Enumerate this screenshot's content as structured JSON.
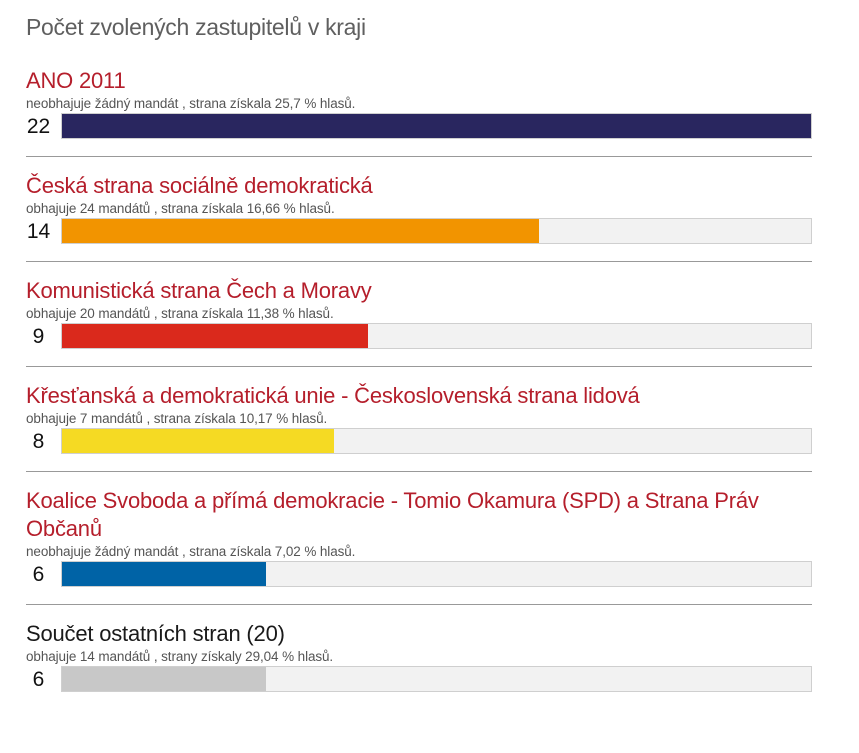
{
  "page": {
    "title": "Počet zvolených zastupitelů v kraji"
  },
  "parties": [
    {
      "name": "ANO 2011",
      "note": "neobhajuje žádný mandát , strana získala 25,7 % hlasů.",
      "seats": "22",
      "color": "#29265f"
    },
    {
      "name": "Česká strana sociálně demokratická",
      "note": "obhajuje 24 mandátů , strana získala 16,66 % hlasů.",
      "seats": "14",
      "color": "#f29400"
    },
    {
      "name": "Komunistická strana Čech a Moravy",
      "note": "obhajuje 20 mandátů , strana získala 11,38 % hlasů.",
      "seats": "9",
      "color": "#da291c"
    },
    {
      "name": "Křesťanská a demokratická unie - Československá strana lidová",
      "note": "obhajuje 7 mandátů , strana získala 10,17 % hlasů.",
      "seats": "8",
      "color": "#f5da23"
    },
    {
      "name": "Koalice Svoboda a přímá demokracie - Tomio Okamura (SPD) a Strana Práv Občanů",
      "note": "neobhajuje žádný mandát , strana získala 7,02 % hlasů.",
      "seats": "6",
      "color": "#0063a6"
    },
    {
      "name": "Součet ostatních stran (20)",
      "note": "obhajuje 14 mandátů , strany získaly 29,04 % hlasů.",
      "seats": "6",
      "color": "#c8c8c8"
    }
  ],
  "chart_data": {
    "type": "bar",
    "orientation": "horizontal",
    "title": "Počet zvolených zastupitelů v kraji",
    "categories": [
      "ANO 2011",
      "Česká strana sociálně demokratická",
      "Komunistická strana Čech a Moravy",
      "Křesťanská a demokratická unie - Československá strana lidová",
      "Koalice Svoboda a přímá demokracie - Tomio Okamura (SPD) a Strana Práv Občanů",
      "Součet ostatních stran (20)"
    ],
    "values": [
      22,
      14,
      9,
      8,
      6,
      6
    ],
    "vote_share_pct": [
      25.7,
      16.66,
      11.38,
      10.17,
      7.02,
      29.04
    ],
    "defended_seats": [
      0,
      24,
      20,
      7,
      0,
      14
    ],
    "colors": [
      "#29265f",
      "#f29400",
      "#da291c",
      "#f5da23",
      "#0063a6",
      "#c8c8c8"
    ],
    "xlim": [
      0,
      22
    ],
    "xlabel": "",
    "ylabel": "",
    "grid": false,
    "legend": "none"
  }
}
